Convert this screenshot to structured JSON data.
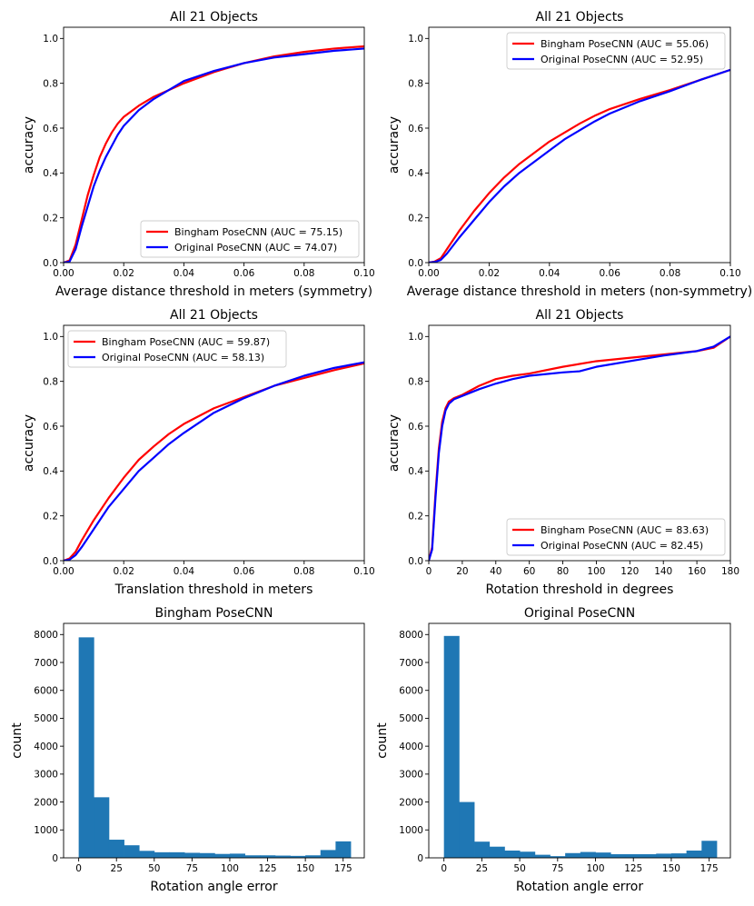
{
  "chart_data": [
    {
      "type": "line",
      "title": "All 21 Objects",
      "xlabel": "Average distance threshold in meters (symmetry)",
      "ylabel": "accuracy",
      "xlim": [
        0,
        0.1
      ],
      "ylim": [
        0,
        1.05
      ],
      "xticks": [
        "0.00",
        "0.02",
        "0.04",
        "0.06",
        "0.08",
        "0.10"
      ],
      "yticks": [
        "0.0",
        "0.2",
        "0.4",
        "0.6",
        "0.8",
        "1.0"
      ],
      "legend_loc": "lower-right",
      "series": [
        {
          "name": "Bingham PoseCNN (AUC = 75.15)",
          "color": "#ff0000",
          "x": [
            0,
            0.002,
            0.004,
            0.006,
            0.008,
            0.01,
            0.012,
            0.014,
            0.016,
            0.018,
            0.02,
            0.025,
            0.03,
            0.035,
            0.04,
            0.05,
            0.06,
            0.07,
            0.08,
            0.09,
            0.1
          ],
          "y": [
            0,
            0.01,
            0.08,
            0.19,
            0.3,
            0.39,
            0.47,
            0.53,
            0.58,
            0.62,
            0.65,
            0.7,
            0.74,
            0.77,
            0.8,
            0.85,
            0.89,
            0.92,
            0.94,
            0.955,
            0.965
          ]
        },
        {
          "name": "Original PoseCNN (AUC = 74.07)",
          "color": "#0000ff",
          "x": [
            0,
            0.002,
            0.004,
            0.006,
            0.008,
            0.01,
            0.012,
            0.014,
            0.016,
            0.018,
            0.02,
            0.025,
            0.03,
            0.035,
            0.04,
            0.05,
            0.06,
            0.07,
            0.08,
            0.09,
            0.1
          ],
          "y": [
            0,
            0.005,
            0.06,
            0.16,
            0.25,
            0.34,
            0.41,
            0.47,
            0.52,
            0.57,
            0.61,
            0.68,
            0.73,
            0.77,
            0.81,
            0.855,
            0.89,
            0.915,
            0.93,
            0.945,
            0.955
          ]
        }
      ]
    },
    {
      "type": "line",
      "title": "All 21 Objects",
      "xlabel": "Average distance threshold in meters (non-symmetry)",
      "ylabel": "accuracy",
      "xlim": [
        0,
        0.1
      ],
      "ylim": [
        0,
        1.05
      ],
      "xticks": [
        "0.00",
        "0.02",
        "0.04",
        "0.06",
        "0.08",
        "0.10"
      ],
      "yticks": [
        "0.0",
        "0.2",
        "0.4",
        "0.6",
        "0.8",
        "1.0"
      ],
      "legend_loc": "upper-right",
      "series": [
        {
          "name": "Bingham PoseCNN (AUC = 55.06)",
          "color": "#ff0000",
          "x": [
            0,
            0.002,
            0.004,
            0.006,
            0.01,
            0.015,
            0.02,
            0.025,
            0.03,
            0.035,
            0.04,
            0.045,
            0.05,
            0.055,
            0.06,
            0.07,
            0.08,
            0.09,
            0.1
          ],
          "y": [
            0,
            0.005,
            0.02,
            0.06,
            0.14,
            0.23,
            0.31,
            0.38,
            0.44,
            0.49,
            0.54,
            0.58,
            0.62,
            0.655,
            0.685,
            0.73,
            0.77,
            0.815,
            0.86
          ]
        },
        {
          "name": "Original PoseCNN (AUC = 52.95)",
          "color": "#0000ff",
          "x": [
            0,
            0.002,
            0.004,
            0.006,
            0.01,
            0.015,
            0.02,
            0.025,
            0.03,
            0.035,
            0.04,
            0.045,
            0.05,
            0.055,
            0.06,
            0.07,
            0.08,
            0.09,
            0.1
          ],
          "y": [
            0,
            0.003,
            0.012,
            0.04,
            0.11,
            0.19,
            0.27,
            0.34,
            0.4,
            0.45,
            0.5,
            0.55,
            0.59,
            0.63,
            0.665,
            0.72,
            0.765,
            0.815,
            0.86
          ]
        }
      ]
    },
    {
      "type": "line",
      "title": "All 21 Objects",
      "xlabel": "Translation threshold in meters",
      "ylabel": "accuracy",
      "xlim": [
        0,
        0.1
      ],
      "ylim": [
        0,
        1.05
      ],
      "xticks": [
        "0.00",
        "0.02",
        "0.04",
        "0.06",
        "0.08",
        "0.10"
      ],
      "yticks": [
        "0.0",
        "0.2",
        "0.4",
        "0.6",
        "0.8",
        "1.0"
      ],
      "legend_loc": "upper-left",
      "series": [
        {
          "name": "Bingham PoseCNN (AUC = 59.87)",
          "color": "#ff0000",
          "x": [
            0,
            0.002,
            0.004,
            0.006,
            0.01,
            0.015,
            0.02,
            0.025,
            0.03,
            0.035,
            0.04,
            0.05,
            0.06,
            0.07,
            0.08,
            0.09,
            0.1
          ],
          "y": [
            0,
            0.01,
            0.04,
            0.09,
            0.18,
            0.28,
            0.37,
            0.45,
            0.51,
            0.565,
            0.61,
            0.68,
            0.73,
            0.78,
            0.815,
            0.85,
            0.88
          ]
        },
        {
          "name": "Original PoseCNN (AUC = 58.13)",
          "color": "#0000ff",
          "x": [
            0,
            0.002,
            0.004,
            0.006,
            0.01,
            0.015,
            0.02,
            0.025,
            0.03,
            0.035,
            0.04,
            0.05,
            0.06,
            0.07,
            0.08,
            0.09,
            0.1
          ],
          "y": [
            0,
            0.005,
            0.025,
            0.06,
            0.14,
            0.24,
            0.32,
            0.4,
            0.46,
            0.52,
            0.57,
            0.66,
            0.725,
            0.78,
            0.825,
            0.86,
            0.885
          ]
        }
      ]
    },
    {
      "type": "line",
      "title": "All 21 Objects",
      "xlabel": "Rotation threshold in degrees",
      "ylabel": "accuracy",
      "xlim": [
        0,
        180
      ],
      "ylim": [
        0,
        1.05
      ],
      "xticks": [
        "0",
        "20",
        "40",
        "60",
        "80",
        "100",
        "120",
        "140",
        "160",
        "180"
      ],
      "yticks": [
        "0.0",
        "0.2",
        "0.4",
        "0.6",
        "0.8",
        "1.0"
      ],
      "legend_loc": "lower-right",
      "series": [
        {
          "name": "Bingham PoseCNN (AUC = 83.63)",
          "color": "#ff0000",
          "x": [
            0,
            2,
            4,
            6,
            8,
            10,
            12,
            15,
            20,
            30,
            40,
            50,
            60,
            80,
            100,
            120,
            140,
            160,
            170,
            180
          ],
          "y": [
            0,
            0.06,
            0.3,
            0.5,
            0.62,
            0.68,
            0.71,
            0.725,
            0.74,
            0.78,
            0.81,
            0.825,
            0.835,
            0.865,
            0.89,
            0.905,
            0.92,
            0.935,
            0.95,
            1.0
          ]
        },
        {
          "name": "Original PoseCNN (AUC = 82.45)",
          "color": "#0000ff",
          "x": [
            0,
            2,
            4,
            6,
            8,
            10,
            12,
            15,
            20,
            30,
            40,
            50,
            60,
            80,
            90,
            100,
            120,
            140,
            160,
            170,
            180
          ],
          "y": [
            0,
            0.05,
            0.28,
            0.48,
            0.6,
            0.67,
            0.7,
            0.72,
            0.735,
            0.765,
            0.79,
            0.81,
            0.825,
            0.84,
            0.845,
            0.865,
            0.89,
            0.915,
            0.935,
            0.955,
            1.0
          ]
        }
      ]
    },
    {
      "type": "bar",
      "title": "Bingham PoseCNN",
      "xlabel": "Rotation angle error",
      "ylabel": "count",
      "bins_start": 0,
      "bin_width": 10,
      "xlim": [
        -10,
        189
      ],
      "ylim": [
        0,
        8400
      ],
      "xticks": [
        "0",
        "25",
        "50",
        "75",
        "100",
        "125",
        "150",
        "175"
      ],
      "yticks": [
        "0",
        "1000",
        "2000",
        "3000",
        "4000",
        "5000",
        "6000",
        "7000",
        "8000"
      ],
      "color": "#1f77b4",
      "values": [
        7900,
        2170,
        650,
        450,
        250,
        200,
        200,
        180,
        170,
        140,
        150,
        90,
        90,
        80,
        70,
        90,
        280,
        590
      ]
    },
    {
      "type": "bar",
      "title": "Original PoseCNN",
      "xlabel": "Rotation angle error",
      "ylabel": "count",
      "bins_start": 0,
      "bin_width": 10,
      "xlim": [
        -10,
        189
      ],
      "ylim": [
        0,
        8400
      ],
      "xticks": [
        "0",
        "25",
        "50",
        "75",
        "100",
        "125",
        "150",
        "175"
      ],
      "yticks": [
        "0",
        "1000",
        "2000",
        "3000",
        "4000",
        "5000",
        "6000",
        "7000",
        "8000"
      ],
      "color": "#1f77b4",
      "values": [
        7950,
        2000,
        580,
        400,
        260,
        220,
        110,
        60,
        170,
        210,
        190,
        130,
        130,
        130,
        150,
        160,
        260,
        610
      ]
    }
  ]
}
